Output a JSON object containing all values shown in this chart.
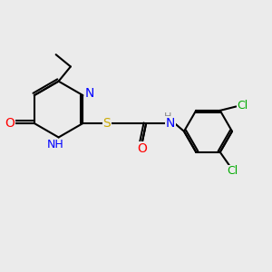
{
  "background_color": "#ebebeb",
  "bond_color": "#000000",
  "bond_width": 1.5,
  "atom_colors": {
    "N": "#0000ff",
    "O": "#ff0000",
    "S": "#ccaa00",
    "Cl": "#00aa00",
    "H": "#888888",
    "C": "#000000"
  },
  "font_size": 9,
  "fig_size": [
    3.0,
    3.0
  ],
  "dpi": 100
}
